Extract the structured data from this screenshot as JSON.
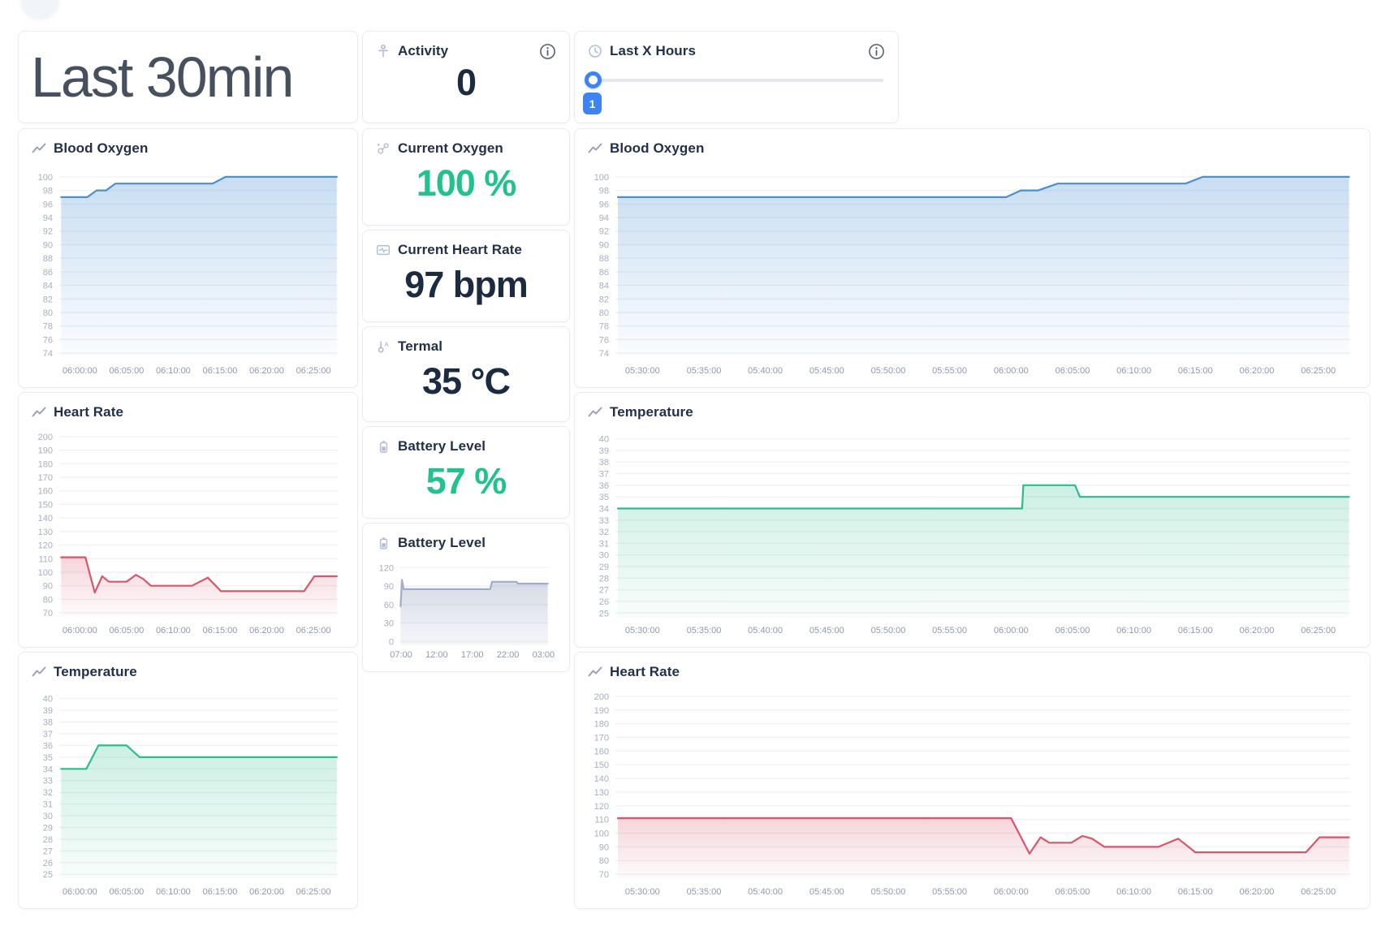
{
  "header": {
    "title": "Last 30min",
    "activity": {
      "label": "Activity",
      "value": "0"
    },
    "last_x": {
      "label": "Last X Hours",
      "value": "1"
    }
  },
  "stats": [
    {
      "label": "Current Oxygen",
      "value": "100 %",
      "icon": "oxygen-molecule-icon",
      "value_color": "#22c28f"
    },
    {
      "label": "Current Heart Rate",
      "value": "97 bpm",
      "icon": "heart-monitor-icon",
      "value_color": "#1d2b41"
    },
    {
      "label": "Termal",
      "value": "35 °C",
      "icon": "thermometer-icon",
      "value_color": "#1d2b41"
    },
    {
      "label": "Battery Level",
      "value": "57 %",
      "icon": "battery-icon",
      "value_color": "#22c28f"
    }
  ],
  "colors": {
    "accent_blue": "#3e83f2",
    "green_value": "#22c28f",
    "dark_value": "#1d2b41",
    "blue_line": "#4a8fd4",
    "red_line": "#d8566b",
    "green_line": "#2cbc8e",
    "gray_line": "#9fadc6",
    "grid": "#eef1f6",
    "tick_text": "#a6aebf"
  },
  "chart_data": [
    {
      "type": "area",
      "title": "Blood Oxygen",
      "line_color": "#4a8fd4",
      "fill_opacity": [
        0.3,
        0.02
      ],
      "ylim": [
        73.3,
        101.3
      ],
      "y_ticks": [
        100,
        98,
        96,
        94,
        92,
        90,
        88,
        86,
        84,
        82,
        80,
        78,
        76,
        74
      ],
      "xlim": [
        357.8,
        387.6
      ],
      "x_ticks": [
        {
          "t": 360,
          "label": "06:00:00"
        },
        {
          "t": 365,
          "label": "06:05:00"
        },
        {
          "t": 370,
          "label": "06:10:00"
        },
        {
          "t": 375,
          "label": "06:15:00"
        },
        {
          "t": 380,
          "label": "06:20:00"
        },
        {
          "t": 385,
          "label": "06:25:00"
        }
      ],
      "points": [
        [
          358,
          97
        ],
        [
          360.8,
          97
        ],
        [
          361.8,
          98
        ],
        [
          362.8,
          98
        ],
        [
          363.8,
          99
        ],
        [
          374.2,
          99
        ],
        [
          375.6,
          100
        ],
        [
          387.5,
          100
        ]
      ]
    },
    {
      "type": "area",
      "title": "Heart Rate",
      "line_color": "#d8566b",
      "fill_opacity": [
        0.25,
        0.02
      ],
      "ylim": [
        66.5,
        203.5
      ],
      "y_ticks": [
        200,
        190,
        180,
        170,
        160,
        150,
        140,
        130,
        120,
        110,
        100,
        90,
        80,
        70
      ],
      "xlim": [
        357.8,
        387.6
      ],
      "x_ticks": [
        {
          "t": 360,
          "label": "06:00:00"
        },
        {
          "t": 365,
          "label": "06:05:00"
        },
        {
          "t": 370,
          "label": "06:10:00"
        },
        {
          "t": 375,
          "label": "06:15:00"
        },
        {
          "t": 380,
          "label": "06:20:00"
        },
        {
          "t": 385,
          "label": "06:25:00"
        }
      ],
      "points": [
        [
          358,
          111
        ],
        [
          360.6,
          111
        ],
        [
          361.6,
          85
        ],
        [
          362.4,
          97
        ],
        [
          363.1,
          93
        ],
        [
          365,
          93
        ],
        [
          366,
          98
        ],
        [
          366.8,
          95
        ],
        [
          367.6,
          90
        ],
        [
          372,
          90
        ],
        [
          373.7,
          96
        ],
        [
          375.1,
          86
        ],
        [
          384,
          86
        ],
        [
          385.1,
          97
        ],
        [
          387.5,
          97
        ]
      ]
    },
    {
      "type": "area",
      "title": "Temperature",
      "line_color": "#2cbc8e",
      "fill_opacity": [
        0.24,
        0.03
      ],
      "ylim": [
        24.6,
        40.6
      ],
      "y_ticks": [
        40,
        39,
        38,
        37,
        36,
        35,
        34,
        33,
        32,
        31,
        30,
        29,
        28,
        27,
        26,
        25
      ],
      "xlim": [
        357.8,
        387.6
      ],
      "x_ticks": [
        {
          "t": 360,
          "label": "06:00:00"
        },
        {
          "t": 365,
          "label": "06:05:00"
        },
        {
          "t": 370,
          "label": "06:10:00"
        },
        {
          "t": 375,
          "label": "06:15:00"
        },
        {
          "t": 380,
          "label": "06:20:00"
        },
        {
          "t": 385,
          "label": "06:25:00"
        }
      ],
      "points": [
        [
          358,
          34
        ],
        [
          360.7,
          34
        ],
        [
          362,
          36
        ],
        [
          365,
          36
        ],
        [
          366.4,
          35
        ],
        [
          387.5,
          35
        ]
      ]
    },
    {
      "type": "area",
      "title": "Battery Level",
      "line_color": "#9fadc6",
      "fill_opacity": [
        0.45,
        0.1
      ],
      "ylim": [
        -6,
        131
      ],
      "y_ticks": [
        120,
        90,
        60,
        30,
        0
      ],
      "xlim": [
        413,
        1658
      ],
      "x_ticks": [
        {
          "t": 420,
          "label": "07:00"
        },
        {
          "t": 720,
          "label": "12:00"
        },
        {
          "t": 1020,
          "label": "17:00"
        },
        {
          "t": 1320,
          "label": "22:00"
        },
        {
          "t": 1620,
          "label": "03:00"
        }
      ],
      "points": [
        [
          416,
          57
        ],
        [
          427,
          100
        ],
        [
          442,
          85
        ],
        [
          1170,
          85
        ],
        [
          1186,
          97
        ],
        [
          1392,
          97
        ],
        [
          1404,
          94
        ],
        [
          1655,
          94
        ]
      ]
    },
    {
      "type": "area",
      "title": "Blood Oxygen",
      "line_color": "#4a8fd4",
      "fill_opacity": [
        0.3,
        0.02
      ],
      "ylim": [
        73.3,
        101.3
      ],
      "y_ticks": [
        100,
        98,
        96,
        94,
        92,
        90,
        88,
        86,
        84,
        82,
        80,
        78,
        76,
        74
      ],
      "xlim": [
        327.8,
        387.6
      ],
      "x_ticks": [
        {
          "t": 330,
          "label": "05:30:00"
        },
        {
          "t": 335,
          "label": "05:35:00"
        },
        {
          "t": 340,
          "label": "05:40:00"
        },
        {
          "t": 345,
          "label": "05:45:00"
        },
        {
          "t": 350,
          "label": "05:50:00"
        },
        {
          "t": 355,
          "label": "05:55:00"
        },
        {
          "t": 360,
          "label": "06:00:00"
        },
        {
          "t": 365,
          "label": "06:05:00"
        },
        {
          "t": 370,
          "label": "06:10:00"
        },
        {
          "t": 375,
          "label": "06:15:00"
        },
        {
          "t": 380,
          "label": "06:20:00"
        },
        {
          "t": 385,
          "label": "06:25:00"
        }
      ],
      "points": [
        [
          328,
          97
        ],
        [
          359.6,
          97
        ],
        [
          360.8,
          98
        ],
        [
          362.2,
          98
        ],
        [
          363.8,
          99
        ],
        [
          374.2,
          99
        ],
        [
          375.6,
          100
        ],
        [
          387.5,
          100
        ]
      ]
    },
    {
      "type": "area",
      "title": "Temperature",
      "line_color": "#2cbc8e",
      "fill_opacity": [
        0.24,
        0.03
      ],
      "ylim": [
        24.6,
        40.6
      ],
      "y_ticks": [
        40,
        39,
        38,
        37,
        36,
        35,
        34,
        33,
        32,
        31,
        30,
        29,
        28,
        27,
        26,
        25
      ],
      "xlim": [
        327.8,
        387.6
      ],
      "x_ticks": [
        {
          "t": 330,
          "label": "05:30:00"
        },
        {
          "t": 335,
          "label": "05:35:00"
        },
        {
          "t": 340,
          "label": "05:40:00"
        },
        {
          "t": 345,
          "label": "05:45:00"
        },
        {
          "t": 350,
          "label": "05:50:00"
        },
        {
          "t": 355,
          "label": "05:55:00"
        },
        {
          "t": 360,
          "label": "06:00:00"
        },
        {
          "t": 365,
          "label": "06:05:00"
        },
        {
          "t": 370,
          "label": "06:10:00"
        },
        {
          "t": 375,
          "label": "06:15:00"
        },
        {
          "t": 380,
          "label": "06:20:00"
        },
        {
          "t": 385,
          "label": "06:25:00"
        }
      ],
      "points": [
        [
          328,
          34
        ],
        [
          360.9,
          34
        ],
        [
          361,
          36
        ],
        [
          365.2,
          36
        ],
        [
          365.6,
          35
        ],
        [
          387.5,
          35
        ]
      ]
    },
    {
      "type": "area",
      "title": "Heart Rate",
      "line_color": "#d8566b",
      "fill_opacity": [
        0.25,
        0.02
      ],
      "ylim": [
        66.5,
        203.5
      ],
      "y_ticks": [
        200,
        190,
        180,
        170,
        160,
        150,
        140,
        130,
        120,
        110,
        100,
        90,
        80,
        70
      ],
      "xlim": [
        327.8,
        387.6
      ],
      "x_ticks": [
        {
          "t": 330,
          "label": "05:30:00"
        },
        {
          "t": 335,
          "label": "05:35:00"
        },
        {
          "t": 340,
          "label": "05:40:00"
        },
        {
          "t": 345,
          "label": "05:45:00"
        },
        {
          "t": 350,
          "label": "05:50:00"
        },
        {
          "t": 355,
          "label": "05:55:00"
        },
        {
          "t": 360,
          "label": "06:00:00"
        },
        {
          "t": 365,
          "label": "06:05:00"
        },
        {
          "t": 370,
          "label": "06:10:00"
        },
        {
          "t": 375,
          "label": "06:15:00"
        },
        {
          "t": 380,
          "label": "06:20:00"
        },
        {
          "t": 385,
          "label": "06:25:00"
        }
      ],
      "points": [
        [
          328,
          111
        ],
        [
          360,
          111
        ],
        [
          361.5,
          85
        ],
        [
          362.4,
          97
        ],
        [
          363.1,
          93
        ],
        [
          364.9,
          93
        ],
        [
          365.8,
          98
        ],
        [
          366.6,
          96
        ],
        [
          367.6,
          90
        ],
        [
          372,
          90
        ],
        [
          373.6,
          96
        ],
        [
          375,
          86
        ],
        [
          384,
          86
        ],
        [
          385.1,
          97
        ],
        [
          387.5,
          97
        ]
      ]
    }
  ]
}
